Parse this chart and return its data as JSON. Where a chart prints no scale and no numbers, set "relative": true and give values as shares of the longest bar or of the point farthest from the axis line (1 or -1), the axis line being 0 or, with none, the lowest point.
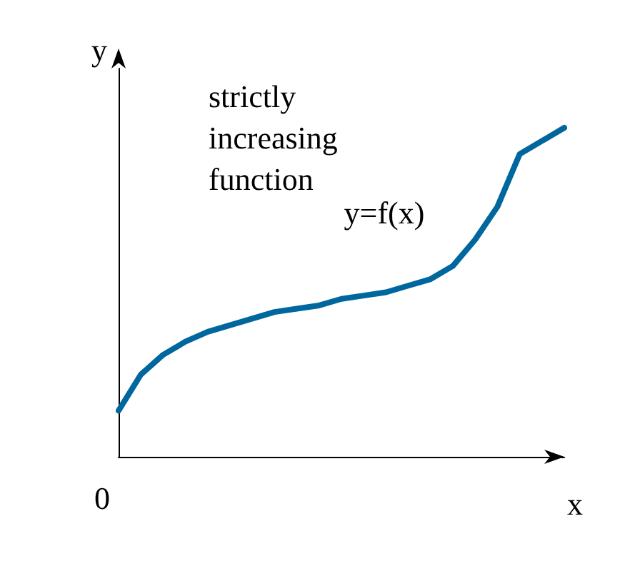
{
  "chart_data": {
    "type": "line",
    "relative": true,
    "xlabel": "x",
    "ylabel": "y",
    "annotations": [
      "strictly increasing function",
      "0"
    ],
    "categories": [
      null,
      null,
      null,
      null,
      null,
      null,
      null,
      null,
      null,
      null,
      null,
      null,
      null,
      null,
      null,
      null,
      null,
      null,
      null,
      null,
      null
    ],
    "series": [
      {
        "name": "y=f(x)",
        "color": "#00669e",
        "values": [
          0.14,
          0.25,
          0.31,
          0.35,
          0.38,
          0.4,
          0.42,
          0.44,
          0.45,
          0.46,
          0.48,
          0.49,
          0.5,
          0.52,
          0.54,
          0.58,
          0.66,
          0.76,
          0.92,
          0.96,
          1
        ]
      }
    ],
    "grid": false,
    "legend": false,
    "marker": "none",
    "line_style": "solid"
  }
}
